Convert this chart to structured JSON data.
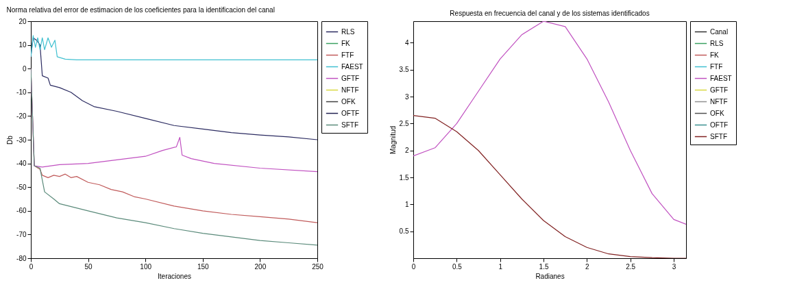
{
  "chart_data": [
    {
      "type": "line",
      "title": "Norma relativa del error de estimacion de los coeficientes para la identificacion del canal",
      "xlabel": "Iteraciones",
      "ylabel": "Db",
      "xlim": [
        0,
        250
      ],
      "xticks": [
        0,
        50,
        100,
        150,
        200,
        250
      ],
      "ylim": [
        -80,
        20
      ],
      "yticks": [
        -80,
        -70,
        -60,
        -50,
        -40,
        -30,
        -20,
        -10,
        0,
        10,
        20
      ],
      "legend": "top right",
      "grid": false,
      "series": [
        {
          "name": "RLS",
          "color": "#2a2a60",
          "x": [
            0,
            2,
            5,
            8,
            10,
            15,
            17,
            25,
            35,
            45,
            55,
            75,
            100,
            125,
            150,
            175,
            200,
            225,
            250
          ],
          "values": [
            5,
            13,
            12,
            10,
            -3,
            -4,
            -7,
            -8,
            -10,
            -13.5,
            -16,
            -18,
            -21,
            -24,
            -25.5,
            -27,
            -28,
            -28.8,
            -30
          ]
        },
        {
          "name": "FK",
          "color": "#3aa060"
        },
        {
          "name": "FTF",
          "color": "#c05a5a",
          "x": [
            0,
            3,
            8,
            10,
            15,
            20,
            25,
            30,
            35,
            40,
            50,
            60,
            70,
            80,
            90,
            100,
            125,
            150,
            175,
            200,
            225,
            250
          ],
          "values": [
            0,
            -41,
            -42.5,
            -45,
            -46,
            -45,
            -45.5,
            -44.5,
            -46,
            -45.5,
            -48,
            -49,
            -51,
            -52,
            -54,
            -55,
            -58,
            -60,
            -61.5,
            -62.5,
            -63.5,
            -65
          ]
        },
        {
          "name": "FAEST",
          "color": "#40c0d0",
          "x": [
            0,
            2,
            4,
            6,
            8,
            10,
            12,
            15,
            18,
            21,
            23,
            30,
            40,
            250
          ],
          "values": [
            5,
            14,
            9,
            13,
            8,
            13,
            8,
            13,
            9,
            12,
            5,
            4,
            3.7,
            3.7
          ]
        },
        {
          "name": "GFTF",
          "color": "#c050c0",
          "x": [
            0,
            3,
            10,
            25,
            50,
            75,
            100,
            115,
            127,
            130,
            132,
            140,
            160,
            200,
            250
          ],
          "values": [
            0,
            -41,
            -41.5,
            -40.5,
            -40,
            -38.5,
            -37,
            -34.5,
            -33,
            -29,
            -36.5,
            -38,
            -40,
            -42,
            -43.5
          ]
        },
        {
          "name": "NFTF",
          "color": "#d8d840"
        },
        {
          "name": "OFK",
          "color": "#404040"
        },
        {
          "name": "OFTF",
          "color": "#202050"
        },
        {
          "name": "SFTF",
          "color": "#5a8a7a",
          "x": [
            0,
            3,
            8,
            10,
            12,
            20,
            25,
            50,
            75,
            100,
            125,
            150,
            175,
            200,
            225,
            250
          ],
          "values": [
            0,
            -41,
            -42,
            -47,
            -52,
            -55,
            -57,
            -60,
            -63,
            -65,
            -67.5,
            -69.5,
            -71,
            -72.5,
            -73.5,
            -74.5
          ]
        }
      ]
    },
    {
      "type": "line",
      "title": "Respuesta en frecuencia del canal y de los sistemas identificados",
      "xlabel": "Radianes",
      "ylabel": "Magnitud",
      "xlim": [
        0,
        3.1416
      ],
      "xticks": [
        0,
        0.5,
        1,
        1.5,
        2,
        2.5,
        3
      ],
      "ylim": [
        0,
        4.4
      ],
      "yticks": [
        0.5,
        1,
        1.5,
        2,
        2.5,
        3,
        3.5,
        4
      ],
      "legend": "top right",
      "grid": false,
      "x": [
        0,
        0.25,
        0.5,
        0.75,
        1,
        1.25,
        1.5,
        1.75,
        2,
        2.25,
        2.5,
        2.75,
        3,
        3.1416
      ],
      "series": [
        {
          "name": "Canal",
          "color": "#303030",
          "values": [
            null,
            null,
            null,
            null,
            null,
            null,
            null,
            null,
            null,
            null,
            null,
            null,
            null,
            null
          ]
        },
        {
          "name": "RLS",
          "color": "#3aa060",
          "values": [
            null,
            null,
            null,
            null,
            null,
            null,
            null,
            null,
            null,
            null,
            null,
            null,
            null,
            null
          ]
        },
        {
          "name": "FK",
          "color": "#c05a5a",
          "values": [
            null,
            null,
            null,
            null,
            null,
            null,
            null,
            null,
            null,
            null,
            null,
            null,
            null,
            null
          ]
        },
        {
          "name": "FTF",
          "color": "#40c0d0",
          "values": [
            null,
            null,
            null,
            null,
            null,
            null,
            null,
            null,
            null,
            null,
            null,
            null,
            null,
            null
          ]
        },
        {
          "name": "FAEST",
          "color": "#c050c0",
          "values": [
            1.9,
            2.05,
            2.5,
            3.1,
            3.7,
            4.15,
            4.4,
            4.3,
            3.7,
            2.9,
            2.0,
            1.2,
            0.72,
            0.63
          ]
        },
        {
          "name": "GFTF",
          "color": "#d8d840",
          "values": [
            null,
            null,
            null,
            null,
            null,
            null,
            null,
            null,
            null,
            null,
            null,
            null,
            null,
            null
          ]
        },
        {
          "name": "NFTF",
          "color": "#909090",
          "values": [
            null,
            null,
            null,
            null,
            null,
            null,
            null,
            null,
            null,
            null,
            null,
            null,
            null,
            null
          ]
        },
        {
          "name": "OFK",
          "color": "#505050",
          "values": [
            null,
            null,
            null,
            null,
            null,
            null,
            null,
            null,
            null,
            null,
            null,
            null,
            null,
            null
          ]
        },
        {
          "name": "OFTF",
          "color": "#3a9090",
          "values": [
            null,
            null,
            null,
            null,
            null,
            null,
            null,
            null,
            null,
            null,
            null,
            null,
            null,
            null
          ]
        },
        {
          "name": "SFTF",
          "color": "#802020",
          "values": [
            2.65,
            2.6,
            2.35,
            2.0,
            1.55,
            1.1,
            0.7,
            0.4,
            0.2,
            0.08,
            0.03,
            0.01,
            0,
            0
          ]
        }
      ]
    }
  ]
}
